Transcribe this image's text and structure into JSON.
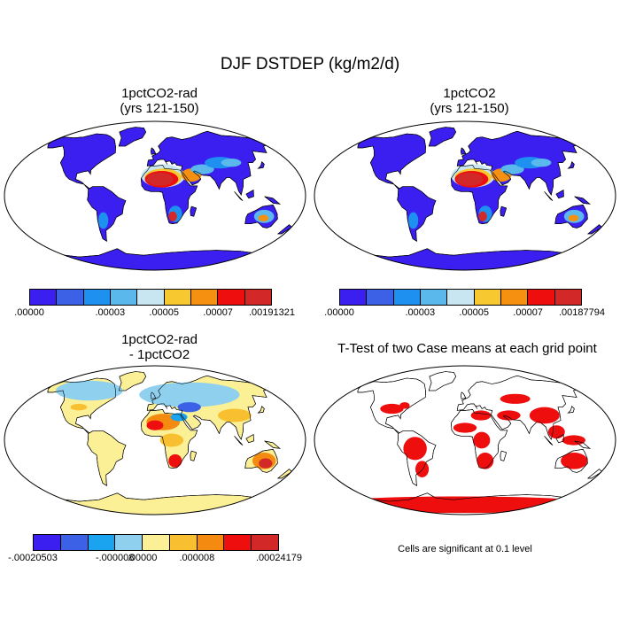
{
  "figure": {
    "title": "DJF DSTDEP (kg/m2/d)"
  },
  "panels": [
    {
      "id": "p1",
      "title_line1": "1pctCO2-rad",
      "title_line2": "(yrs 121-150)",
      "kind": "field",
      "colors": [
        "#3a1ff0",
        "#3c60e6",
        "#1e90f0",
        "#5ab8ec",
        "#c8e6f2",
        "#f8c830",
        "#f59010",
        "#ee0e0e",
        "#d22828"
      ],
      "tick_labels": [
        ".00000",
        ".00003",
        ".00005",
        ".00007",
        ".00191321"
      ],
      "tick_boxes": [
        0,
        3,
        5,
        7,
        9
      ]
    },
    {
      "id": "p2",
      "title_line1": "1pctCO2",
      "title_line2": "(yrs 121-150)",
      "kind": "field",
      "colors": [
        "#3a1ff0",
        "#3c60e6",
        "#1e90f0",
        "#5ab8ec",
        "#c8e6f2",
        "#f8c830",
        "#f59010",
        "#ee0e0e",
        "#d22828"
      ],
      "tick_labels": [
        ".00000",
        ".00003",
        ".00005",
        ".00007",
        ".00187794"
      ],
      "tick_boxes": [
        0,
        3,
        5,
        7,
        9
      ]
    },
    {
      "id": "p3",
      "title_line1": "1pctCO2-rad",
      "title_line2": "- 1pctCO2",
      "kind": "diff",
      "colors": [
        "#3a1ff0",
        "#3c60e6",
        "#1aa4f0",
        "#8ed0ee",
        "#fcf096",
        "#f8c030",
        "#f58a10",
        "#ee0e0e",
        "#d22828"
      ],
      "tick_labels": [
        "-.00020503",
        "-.000008",
        ".00000",
        ".000008",
        ".00024179"
      ],
      "tick_boxes": [
        0,
        3,
        4,
        6,
        9
      ]
    },
    {
      "id": "p4",
      "title_line1": "T-Test of two Case means at each grid point",
      "kind": "ttest",
      "note": "Cells are significant at 0.1 level"
    }
  ]
}
